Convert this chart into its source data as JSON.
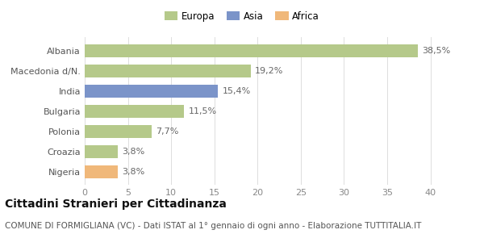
{
  "categories": [
    "Albania",
    "Macedonia d/N.",
    "India",
    "Bulgaria",
    "Polonia",
    "Croazia",
    "Nigeria"
  ],
  "values": [
    38.5,
    19.2,
    15.4,
    11.5,
    7.7,
    3.8,
    3.8
  ],
  "labels": [
    "38,5%",
    "19,2%",
    "15,4%",
    "11,5%",
    "7,7%",
    "3,8%",
    "3,8%"
  ],
  "bar_colors": [
    "#b5c98a",
    "#b5c98a",
    "#7b94c9",
    "#b5c98a",
    "#b5c98a",
    "#b5c98a",
    "#f0b87a"
  ],
  "legend": [
    {
      "label": "Europa",
      "color": "#b5c98a"
    },
    {
      "label": "Asia",
      "color": "#7b94c9"
    },
    {
      "label": "Africa",
      "color": "#f0b87a"
    }
  ],
  "xlim": [
    0,
    42
  ],
  "xticks": [
    0,
    5,
    10,
    15,
    20,
    25,
    30,
    35,
    40
  ],
  "title": "Cittadini Stranieri per Cittadinanza",
  "subtitle": "COMUNE DI FORMIGLIANA (VC) - Dati ISTAT al 1° gennaio di ogni anno - Elaborazione TUTTITALIA.IT",
  "bg_color": "#ffffff",
  "plot_bg_color": "#ffffff",
  "bar_height": 0.65,
  "title_fontsize": 10,
  "subtitle_fontsize": 7.5,
  "label_fontsize": 8,
  "tick_fontsize": 8,
  "ytick_fontsize": 8
}
